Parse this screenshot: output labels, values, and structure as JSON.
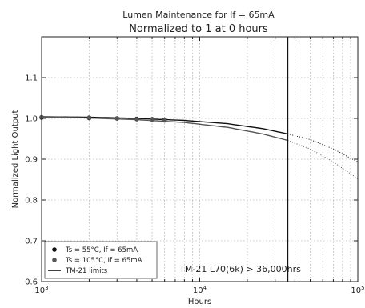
{
  "chart_data": {
    "type": "line",
    "title": "Lumen Maintenance for If = 65mA",
    "subtitle": "Normalized to 1 at 0 hours",
    "xlabel": "Hours",
    "ylabel": "Normalized Light Output",
    "x_scale": "log",
    "xlim": [
      1000,
      100000
    ],
    "ylim": [
      0.6,
      1.2
    ],
    "grid": true,
    "x_ticks": [
      {
        "value": 1000,
        "base": "10",
        "exp": "3"
      },
      {
        "value": 10000,
        "base": "10",
        "exp": "4"
      },
      {
        "value": 100000,
        "base": "10",
        "exp": "5"
      }
    ],
    "y_ticks": [
      0.6,
      0.7,
      0.8,
      0.9,
      1.0,
      1.1
    ],
    "y_tick_labels": [
      "0.6",
      "0.7",
      "0.8",
      "0.9",
      "1.0",
      "1.1"
    ],
    "series": [
      {
        "name": "Ts = 55°C, If = 65mA",
        "color": "#111111",
        "points": [
          {
            "x": 1000,
            "y": 1.002
          },
          {
            "x": 2000,
            "y": 1.001
          },
          {
            "x": 3000,
            "y": 1.0
          },
          {
            "x": 4000,
            "y": 0.999
          },
          {
            "x": 5000,
            "y": 0.998
          },
          {
            "x": 6000,
            "y": 0.997
          }
        ],
        "fit": [
          {
            "x": 1000,
            "y": 1.004
          },
          {
            "x": 2000,
            "y": 1.003
          },
          {
            "x": 4000,
            "y": 1.0
          },
          {
            "x": 8000,
            "y": 0.995
          },
          {
            "x": 15000,
            "y": 0.987
          },
          {
            "x": 25000,
            "y": 0.975
          },
          {
            "x": 36000,
            "y": 0.962
          }
        ],
        "extrapolation": [
          {
            "x": 36000,
            "y": 0.962
          },
          {
            "x": 50000,
            "y": 0.948
          },
          {
            "x": 70000,
            "y": 0.925
          },
          {
            "x": 100000,
            "y": 0.893
          }
        ]
      },
      {
        "name": "Ts = 105°C, If = 65mA",
        "color": "#555555",
        "points": [
          {
            "x": 1000,
            "y": 1.003
          },
          {
            "x": 2000,
            "y": 1.002
          },
          {
            "x": 3000,
            "y": 1.0
          },
          {
            "x": 4000,
            "y": 0.998
          },
          {
            "x": 5000,
            "y": 0.997
          },
          {
            "x": 6000,
            "y": 0.995
          }
        ],
        "fit": [
          {
            "x": 1000,
            "y": 1.004
          },
          {
            "x": 2000,
            "y": 1.001
          },
          {
            "x": 4000,
            "y": 0.997
          },
          {
            "x": 8000,
            "y": 0.99
          },
          {
            "x": 15000,
            "y": 0.978
          },
          {
            "x": 25000,
            "y": 0.962
          },
          {
            "x": 36000,
            "y": 0.946
          }
        ],
        "extrapolation": [
          {
            "x": 36000,
            "y": 0.946
          },
          {
            "x": 50000,
            "y": 0.925
          },
          {
            "x": 70000,
            "y": 0.893
          },
          {
            "x": 100000,
            "y": 0.852
          }
        ]
      }
    ],
    "tm21_limit_x": 36000,
    "legend": {
      "placement": "bottom-left",
      "entries": [
        {
          "label": "Ts = 55°C, If = 65mA",
          "marker": "dot",
          "color": "#111111"
        },
        {
          "label": "Ts = 105°C, If = 65mA",
          "marker": "dot",
          "color": "#555555"
        },
        {
          "label": "TM-21 limits",
          "marker": "line",
          "color": "#111111"
        }
      ]
    },
    "annotation": "TM-21 L70(6k) > 36,000hrs"
  }
}
